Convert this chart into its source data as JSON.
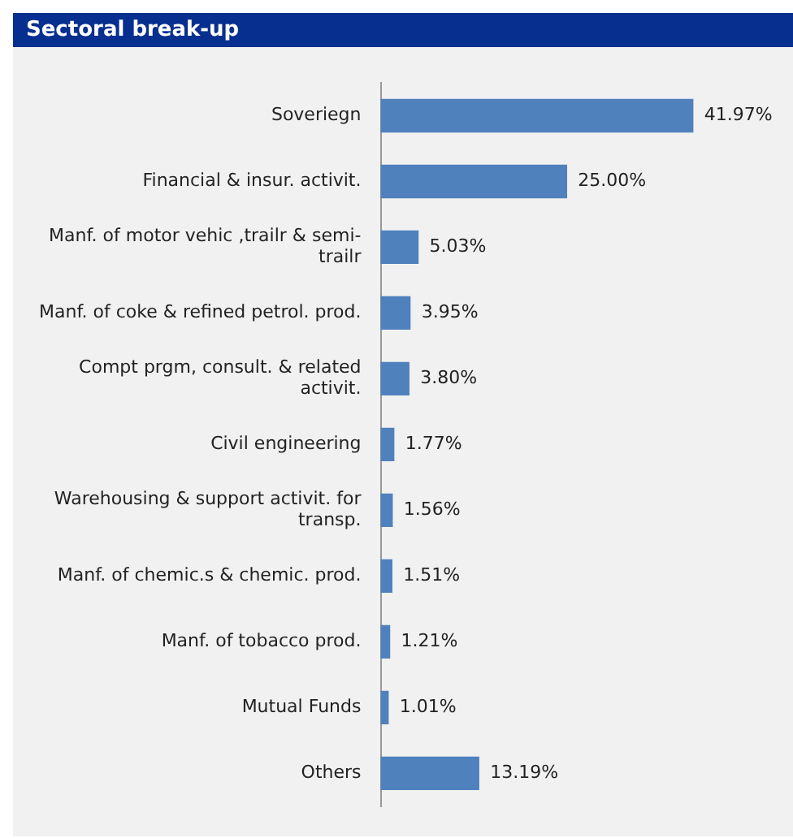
{
  "chart_data": {
    "type": "bar",
    "orientation": "horizontal",
    "title": "Sectoral break-up",
    "categories": [
      "Soveriegn",
      "Financial & insur. activit.",
      "Manf. of motor vehic ,trailr & semi-trailr",
      "Manf. of coke & refined petrol. prod.",
      "Compt prgm, consult. & related activit.",
      "Civil engineering",
      "Warehousing & support activit. for transp.",
      "Manf. of chemic.s & chemic. prod.",
      "Manf. of tobacco prod.",
      "Mutual Funds",
      "Others"
    ],
    "values": [
      41.97,
      25.0,
      5.03,
      3.95,
      3.8,
      1.77,
      1.56,
      1.51,
      1.21,
      1.01,
      13.19
    ],
    "value_labels": [
      "41.97%",
      "25.00%",
      "5.03%",
      "3.95%",
      "3.80%",
      "1.77%",
      "1.56%",
      "1.51%",
      "1.21%",
      "1.01%",
      "13.19%"
    ],
    "color": "#4f81bd",
    "legend": false
  }
}
